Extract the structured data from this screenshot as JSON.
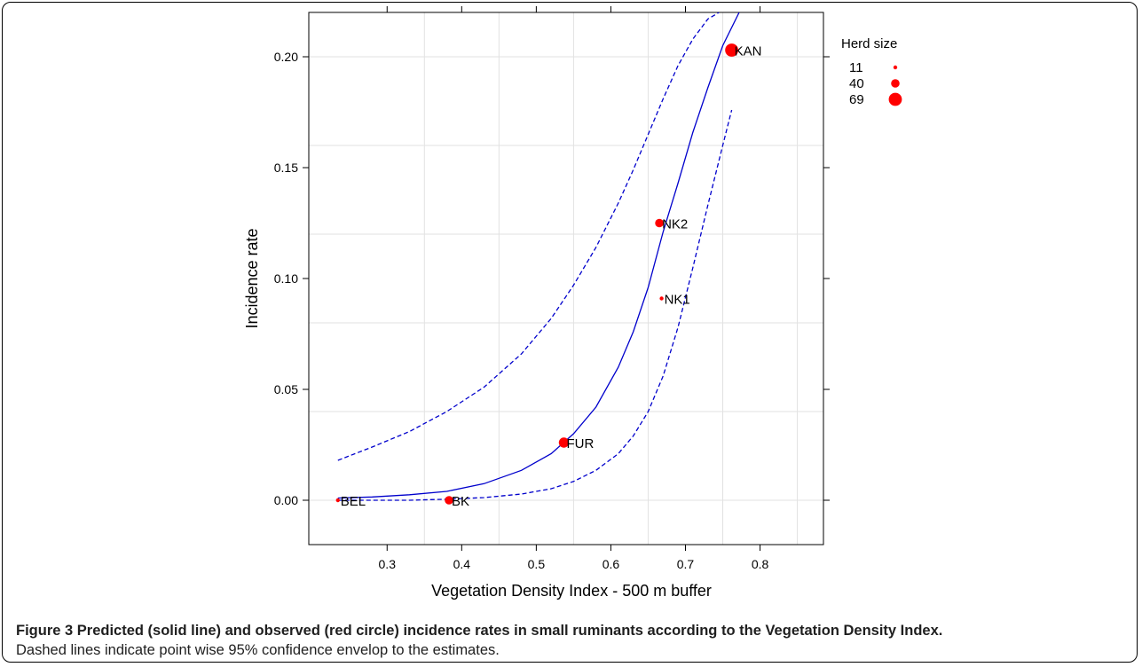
{
  "chart_data": {
    "type": "scatter",
    "xlabel": "Vegetation Density Index - 500 m buffer",
    "ylabel": "Incidence rate",
    "xlim": [
      0.195,
      0.885
    ],
    "ylim": [
      -0.02,
      0.22
    ],
    "x_ticks": [
      0.3,
      0.4,
      0.5,
      0.6,
      0.7,
      0.8
    ],
    "y_ticks": [
      0.0,
      0.05,
      0.1,
      0.15,
      0.2
    ],
    "x_tick_labels": [
      "0.3",
      "0.4",
      "0.5",
      "0.6",
      "0.7",
      "0.8"
    ],
    "y_tick_labels": [
      "0.00",
      "0.05",
      "0.10",
      "0.15",
      "0.20"
    ],
    "grid": true,
    "points": [
      {
        "label": "KAN",
        "x": 0.762,
        "y": 0.203,
        "herd_size": 69
      },
      {
        "label": "NK2",
        "x": 0.665,
        "y": 0.125,
        "herd_size": 40
      },
      {
        "label": "NK1",
        "x": 0.668,
        "y": 0.091,
        "herd_size": 11
      },
      {
        "label": "FUR",
        "x": 0.537,
        "y": 0.026,
        "herd_size": 50
      },
      {
        "label": "BK",
        "x": 0.383,
        "y": 0.0,
        "herd_size": 40
      },
      {
        "label": "BEL",
        "x": 0.234,
        "y": 0.0,
        "herd_size": 11
      }
    ],
    "series": [
      {
        "name": "Predicted",
        "style": "solid",
        "x": [
          0.234,
          0.28,
          0.33,
          0.38,
          0.43,
          0.48,
          0.52,
          0.55,
          0.58,
          0.61,
          0.63,
          0.65,
          0.67,
          0.69,
          0.71,
          0.73,
          0.75,
          0.772
        ],
        "y": [
          0.001,
          0.0015,
          0.0025,
          0.004,
          0.0075,
          0.0135,
          0.021,
          0.03,
          0.042,
          0.06,
          0.076,
          0.096,
          0.121,
          0.143,
          0.166,
          0.186,
          0.205,
          0.22
        ]
      },
      {
        "name": "Upper 95%",
        "style": "dashed",
        "x": [
          0.234,
          0.28,
          0.33,
          0.38,
          0.43,
          0.48,
          0.52,
          0.55,
          0.58,
          0.61,
          0.63,
          0.65,
          0.67,
          0.69,
          0.71,
          0.73,
          0.745
        ],
        "y": [
          0.018,
          0.024,
          0.031,
          0.04,
          0.051,
          0.066,
          0.082,
          0.097,
          0.114,
          0.134,
          0.149,
          0.165,
          0.181,
          0.196,
          0.208,
          0.217,
          0.22
        ]
      },
      {
        "name": "Lower 95%",
        "style": "dashed",
        "x": [
          0.234,
          0.28,
          0.33,
          0.38,
          0.43,
          0.48,
          0.52,
          0.55,
          0.58,
          0.61,
          0.63,
          0.65,
          0.67,
          0.69,
          0.71,
          0.73,
          0.75,
          0.762
        ],
        "y": [
          0.0,
          0.0,
          0.0,
          0.0005,
          0.0012,
          0.0028,
          0.0052,
          0.0085,
          0.0135,
          0.021,
          0.029,
          0.04,
          0.056,
          0.078,
          0.105,
          0.133,
          0.16,
          0.176
        ]
      }
    ],
    "legend": {
      "title": "Herd size",
      "placement": "right",
      "entries": [
        {
          "label": "11",
          "herd_size": 11
        },
        {
          "label": "40",
          "herd_size": 40
        },
        {
          "label": "69",
          "herd_size": 69
        }
      ]
    },
    "colors": {
      "points": "#ff0000",
      "lines": "#0000cc",
      "grid": "#e2e2e2",
      "axis": "#000000"
    }
  },
  "caption": {
    "heading": "Figure 3 Predicted (solid line) and observed (red circle) incidence rates in small ruminants according to the Vegetation Density Index.",
    "body": "Dashed lines indicate point wise 95% confidence envelop to the estimates."
  }
}
